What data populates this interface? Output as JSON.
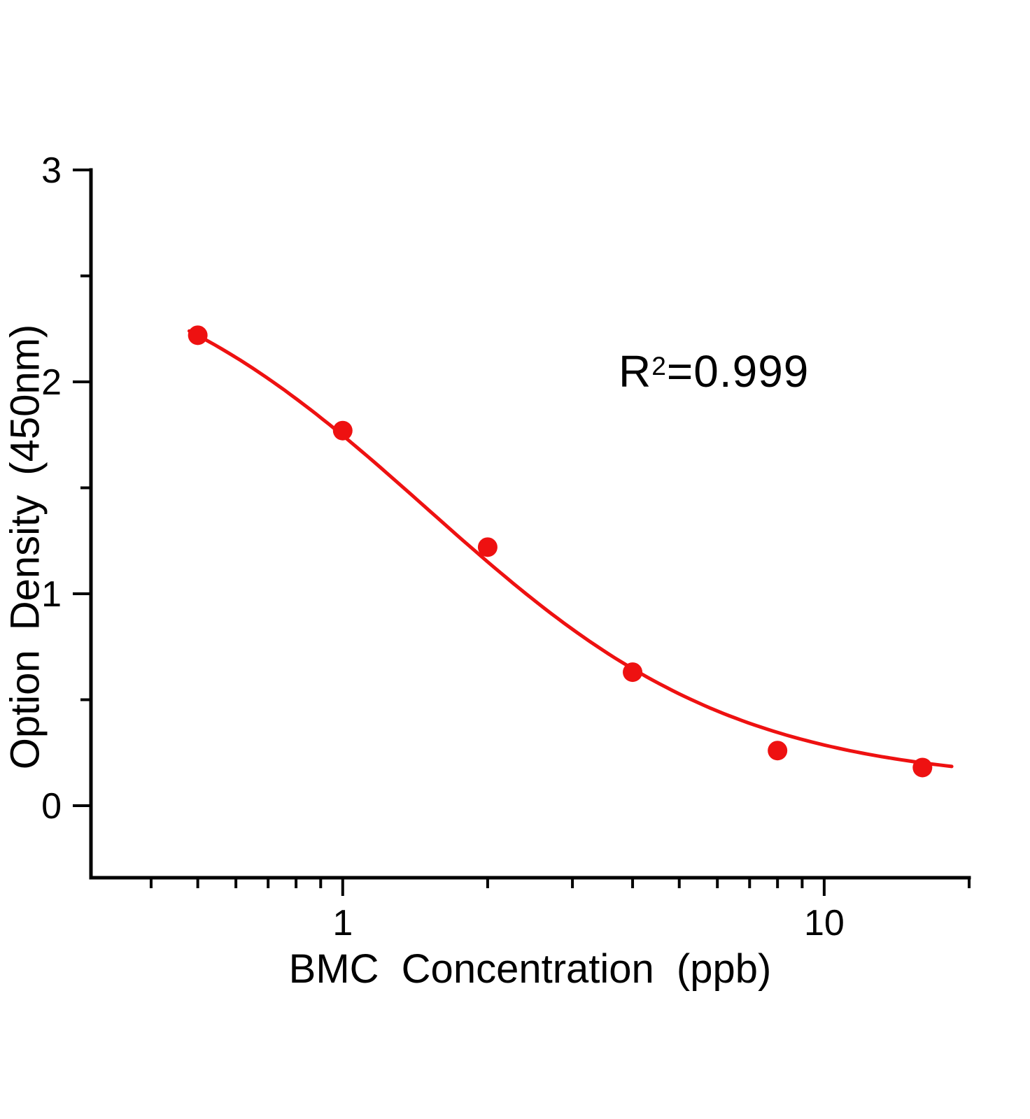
{
  "chart_data": {
    "type": "scatter",
    "title": "",
    "xlabel": "BMC Concentration (ppb)",
    "ylabel": "Option Density (450nm)",
    "x_scale": "log",
    "xlim": [
      0.3,
      20
    ],
    "ylim": [
      -0.34,
      3
    ],
    "grid": false,
    "legend": "none",
    "x_major_ticks": [
      {
        "value": 1,
        "label": "1"
      },
      {
        "value": 10,
        "label": "10"
      }
    ],
    "x_minor_ticks": [
      0.4,
      0.5,
      0.6,
      0.7,
      0.8,
      0.9,
      2,
      3,
      4,
      5,
      6,
      7,
      8,
      9,
      20
    ],
    "y_major_ticks": [
      {
        "value": 0,
        "label": "0"
      },
      {
        "value": 1,
        "label": "1"
      },
      {
        "value": 2,
        "label": "2"
      },
      {
        "value": 3,
        "label": "3"
      }
    ],
    "y_minor_ticks": [
      0.5,
      1.5,
      2.5
    ],
    "points": [
      {
        "x": 0.5,
        "y": 2.22
      },
      {
        "x": 1,
        "y": 1.77
      },
      {
        "x": 2,
        "y": 1.22
      },
      {
        "x": 4,
        "y": 0.63
      },
      {
        "x": 8,
        "y": 0.26
      },
      {
        "x": 16,
        "y": 0.18
      }
    ],
    "fit": {
      "type": "4PL",
      "a": 2.7,
      "b": 1.35,
      "c": 1.5,
      "d": 0.1,
      "x_start": 0.48,
      "x_end": 18.4
    },
    "annotation": {
      "text": "R²=0.999",
      "base": "R",
      "sup": "2",
      "rest": "=0.999"
    },
    "colors": {
      "series": "#ee1111",
      "axis": "#000000"
    }
  }
}
